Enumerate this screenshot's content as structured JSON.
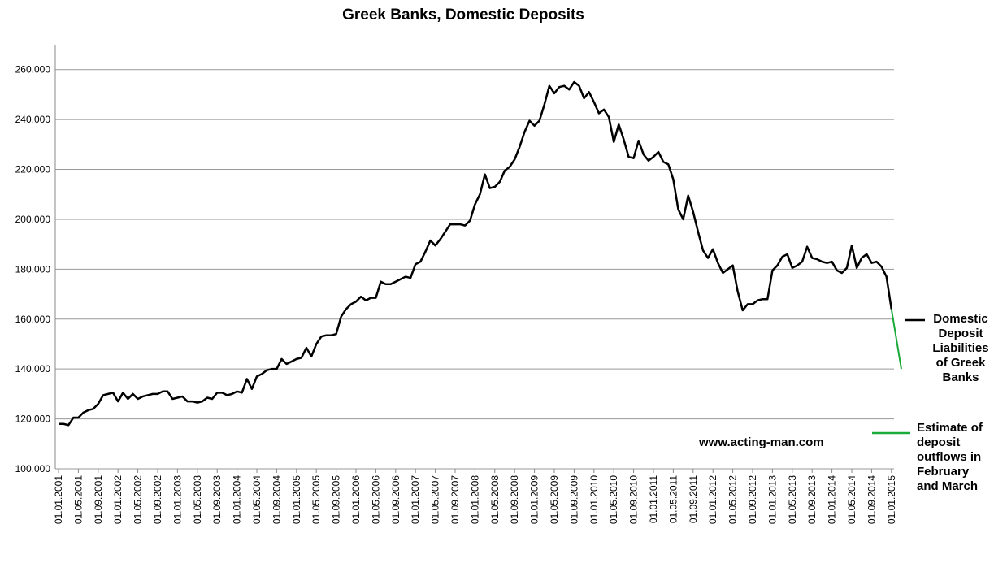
{
  "chart_data": {
    "type": "line",
    "title": "Greek Banks, Domestic Deposits",
    "annotation": "www.acting-man.com",
    "categories": [
      "01.01.2001",
      null,
      null,
      null,
      "01.05.2001",
      null,
      null,
      null,
      "01.09.2001",
      null,
      null,
      null,
      "01.01.2002",
      null,
      null,
      null,
      "01.05.2002",
      null,
      null,
      null,
      "01.09.2002",
      null,
      null,
      null,
      "01.01.2003",
      null,
      null,
      null,
      "01.05.2003",
      null,
      null,
      null,
      "01.09.2003",
      null,
      null,
      null,
      "01.01.2004",
      null,
      null,
      null,
      "01.05.2004",
      null,
      null,
      null,
      "01.09.2004",
      null,
      null,
      null,
      "01.01.2005",
      null,
      null,
      null,
      "01.05.2005",
      null,
      null,
      null,
      "01.09.2005",
      null,
      null,
      null,
      "01.01.2006",
      null,
      null,
      null,
      "01.05.2006",
      null,
      null,
      null,
      "01.09.2006",
      null,
      null,
      null,
      "01.01.2007",
      null,
      null,
      null,
      "01.05.2007",
      null,
      null,
      null,
      "01.09.2007",
      null,
      null,
      null,
      "01.01.2008",
      null,
      null,
      null,
      "01.05.2008",
      null,
      null,
      null,
      "01.09.2008",
      null,
      null,
      null,
      "01.01.2009",
      null,
      null,
      null,
      "01.05.2009",
      null,
      null,
      null,
      "01.09.2009",
      null,
      null,
      null,
      "01.01.2010",
      null,
      null,
      null,
      "01.05.2010",
      null,
      null,
      null,
      "01.09.2010",
      null,
      null,
      null,
      "01.01.2011",
      null,
      null,
      null,
      "01.05.2011",
      null,
      null,
      null,
      "01.09.2011",
      null,
      null,
      null,
      "01.01.2012",
      null,
      null,
      null,
      "01.05.2012",
      null,
      null,
      null,
      "01.09.2012",
      null,
      null,
      null,
      "01.01.2013",
      null,
      null,
      null,
      "01.05.2013",
      null,
      null,
      null,
      "01.09.2013",
      null,
      null,
      null,
      "01.01.2014",
      null,
      null,
      null,
      "01.05.2014",
      null,
      null,
      null,
      "01.09.2014",
      null,
      null,
      null,
      "01.01.2015",
      null,
      null
    ],
    "series": [
      {
        "name": "Domestic Deposit Liabilities of Greek Banks",
        "color": "#000000",
        "values": [
          118000,
          118000,
          117500,
          120500,
          120500,
          122500,
          123500,
          124000,
          126000,
          129500,
          130000,
          130500,
          127000,
          130500,
          128000,
          130000,
          128000,
          129000,
          129500,
          130000,
          130000,
          131000,
          131000,
          128000,
          128500,
          129000,
          127000,
          127000,
          126500,
          127000,
          128500,
          128000,
          130500,
          130500,
          129500,
          130000,
          131000,
          130500,
          136000,
          132000,
          137000,
          138000,
          139500,
          140000,
          140000,
          144000,
          142000,
          143000,
          144000,
          144500,
          148500,
          145000,
          150000,
          153000,
          153500,
          153500,
          154000,
          161000,
          164000,
          166000,
          167000,
          169000,
          167500,
          168500,
          168500,
          175000,
          174000,
          174000,
          175000,
          176000,
          177000,
          176500,
          182000,
          183000,
          187000,
          191500,
          189500,
          192000,
          195000,
          198000,
          198000,
          198000,
          197500,
          199500,
          206000,
          210000,
          218000,
          212500,
          213000,
          215000,
          219500,
          221000,
          224000,
          229000,
          235000,
          239500,
          237500,
          239500,
          246000,
          253500,
          250500,
          253000,
          253500,
          252000,
          255000,
          253500,
          248500,
          251000,
          247000,
          242500,
          244000,
          241000,
          231000,
          238000,
          232000,
          225000,
          224500,
          231500,
          226000,
          223500,
          225000,
          227000,
          223000,
          222000,
          216000,
          204000,
          200000,
          209500,
          203000,
          195000,
          187500,
          184500,
          188000,
          182500,
          178500,
          180000,
          181500,
          171000,
          163500,
          166000,
          166000,
          167500,
          168000,
          168000,
          179500,
          181500,
          185000,
          186000,
          180500,
          181500,
          183000,
          189000,
          184500,
          184000,
          183000,
          182500,
          183000,
          179500,
          178500,
          180500,
          189500,
          180500,
          184500,
          186000,
          182500,
          183000,
          181000,
          177000,
          164000,
          null,
          null
        ]
      },
      {
        "name": "Estimate of deposit outflows in February and March",
        "color": "#1aaa3a",
        "values": [
          null,
          null,
          null,
          null,
          null,
          null,
          null,
          null,
          null,
          null,
          null,
          null,
          null,
          null,
          null,
          null,
          null,
          null,
          null,
          null,
          null,
          null,
          null,
          null,
          null,
          null,
          null,
          null,
          null,
          null,
          null,
          null,
          null,
          null,
          null,
          null,
          null,
          null,
          null,
          null,
          null,
          null,
          null,
          null,
          null,
          null,
          null,
          null,
          null,
          null,
          null,
          null,
          null,
          null,
          null,
          null,
          null,
          null,
          null,
          null,
          null,
          null,
          null,
          null,
          null,
          null,
          null,
          null,
          null,
          null,
          null,
          null,
          null,
          null,
          null,
          null,
          null,
          null,
          null,
          null,
          null,
          null,
          null,
          null,
          null,
          null,
          null,
          null,
          null,
          null,
          null,
          null,
          null,
          null,
          null,
          null,
          null,
          null,
          null,
          null,
          null,
          null,
          null,
          null,
          null,
          null,
          null,
          null,
          null,
          null,
          null,
          null,
          null,
          null,
          null,
          null,
          null,
          null,
          null,
          null,
          null,
          null,
          null,
          null,
          null,
          null,
          null,
          null,
          null,
          null,
          null,
          null,
          null,
          null,
          null,
          null,
          null,
          null,
          null,
          null,
          null,
          null,
          null,
          null,
          null,
          null,
          null,
          null,
          null,
          null,
          null,
          null,
          null,
          null,
          null,
          null,
          null,
          null,
          null,
          null,
          null,
          null,
          null,
          null,
          null,
          null,
          null,
          null,
          164000,
          152000,
          140000
        ]
      }
    ],
    "ylim": [
      100000,
      270000
    ],
    "yticks": [
      {
        "value": 100000,
        "label": "100.000"
      },
      {
        "value": 120000,
        "label": "120.000"
      },
      {
        "value": 140000,
        "label": "140.000"
      },
      {
        "value": 160000,
        "label": "160.000"
      },
      {
        "value": 180000,
        "label": "180.000"
      },
      {
        "value": 200000,
        "label": "200.000"
      },
      {
        "value": 220000,
        "label": "220.000"
      },
      {
        "value": 240000,
        "label": "240.000"
      },
      {
        "value": 260000,
        "label": "260.000"
      }
    ],
    "grid": true
  }
}
